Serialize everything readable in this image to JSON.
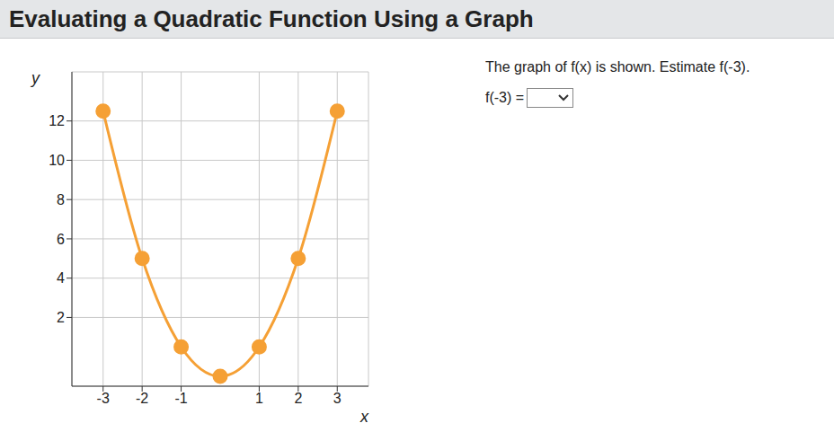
{
  "header": {
    "title": "Evaluating a Quadratic Function Using a Graph"
  },
  "question": {
    "text": "The graph of f(x) is shown. Estimate f(-3).",
    "prompt": "f(-3) ="
  },
  "chart_data": {
    "type": "line",
    "x": [
      -3,
      -2,
      -1,
      0,
      1,
      2,
      3
    ],
    "values": [
      12.5,
      5,
      0.5,
      -1,
      0.5,
      5,
      12.5
    ],
    "color": "#f5a035",
    "marker": "circle",
    "line_style": "solid",
    "x_label": "x",
    "y_label": "y",
    "xlim": [
      -3.8,
      3.8
    ],
    "ylim": [
      -1.5,
      14.5
    ],
    "xticks": [
      -3,
      -2,
      -1,
      1,
      2,
      3
    ],
    "yticks": [
      2,
      4,
      6,
      8,
      10,
      12
    ],
    "grid": true
  }
}
